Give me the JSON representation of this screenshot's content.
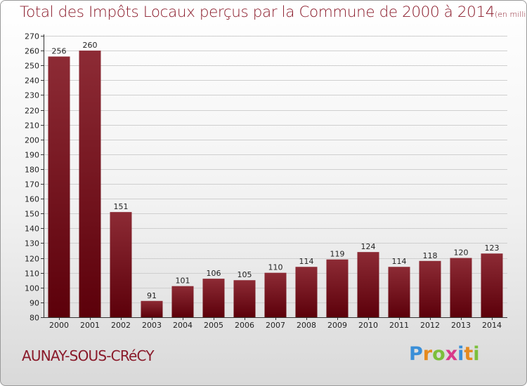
{
  "title": "Total des Impôts Locaux perçus par la Commune de 2000 à 2014",
  "title_unit": "(en milliers d'€)",
  "commune": "AUNAY-SOUS-CRéCY",
  "logo": {
    "text": "Proxiti",
    "colors": [
      "#3a8fd8",
      "#e58a1f",
      "#7cbf3c",
      "#d83a8a",
      "#3a8fd8",
      "#e58a1f",
      "#7cbf3c"
    ]
  },
  "colors": {
    "bar_top": "#8d2b35",
    "bar_bottom": "#5c000a",
    "title": "#8a1a2a",
    "grid": "#cfcfcf",
    "axis": "#333333"
  },
  "chart_data": {
    "type": "bar",
    "title": "Total des Impôts Locaux perçus par la Commune de 2000 à 2014",
    "xlabel": "",
    "ylabel": "",
    "categories": [
      "2000",
      "2001",
      "2002",
      "2003",
      "2004",
      "2005",
      "2006",
      "2007",
      "2008",
      "2009",
      "2010",
      "2011",
      "2012",
      "2013",
      "2014"
    ],
    "values": [
      256,
      260,
      151,
      91,
      101,
      106,
      105,
      110,
      114,
      119,
      124,
      114,
      118,
      120,
      123
    ],
    "ylim": [
      80,
      270
    ],
    "ytick_step": 10,
    "grid": true
  }
}
